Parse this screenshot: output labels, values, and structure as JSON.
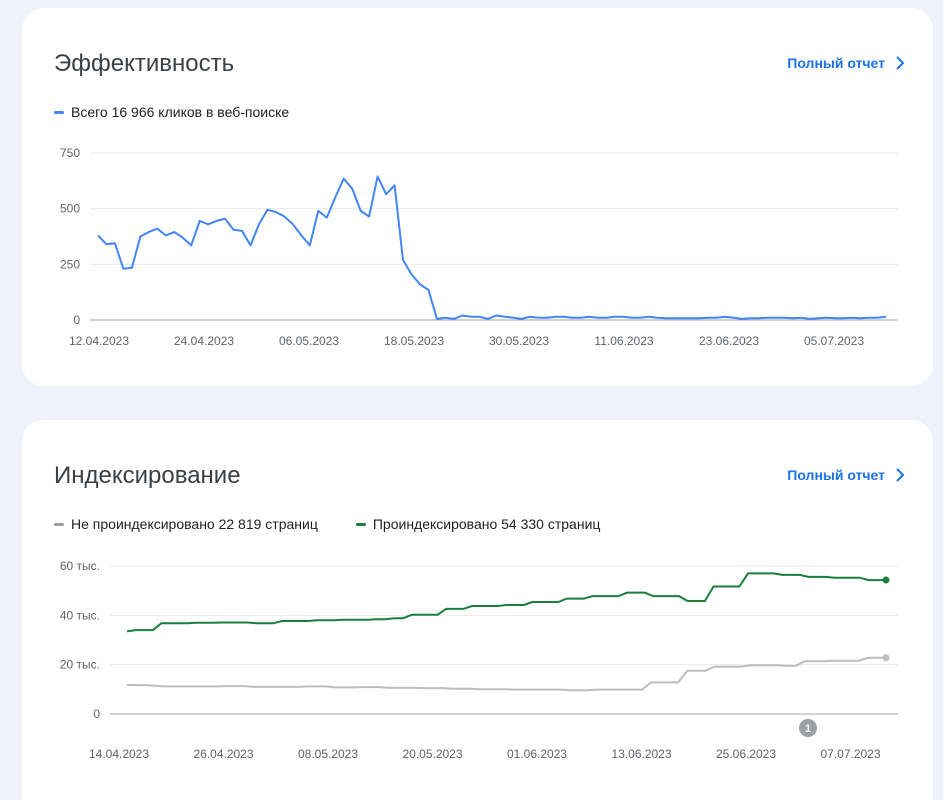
{
  "performance": {
    "title": "Эффективность",
    "full_report": "Полный отчет",
    "legend": {
      "label": "Всего 16 966 кликов в веб-поиске",
      "color": "#4285f4"
    },
    "chart_data": {
      "type": "line",
      "x_ticks": [
        "12.04.2023",
        "24.04.2023",
        "06.05.2023",
        "18.05.2023",
        "30.05.2023",
        "11.06.2023",
        "23.06.2023",
        "05.07.2023"
      ],
      "y_ticks": [
        "0",
        "250",
        "500",
        "750"
      ],
      "ylim": [
        0,
        750
      ],
      "series": [
        {
          "color": "#4285f4",
          "values": [
            380,
            340,
            345,
            230,
            235,
            375,
            395,
            410,
            380,
            395,
            370,
            335,
            445,
            430,
            445,
            455,
            405,
            400,
            335,
            430,
            495,
            485,
            465,
            430,
            380,
            335,
            490,
            460,
            550,
            635,
            590,
            490,
            465,
            645,
            565,
            605,
            270,
            205,
            160,
            135,
            5,
            10,
            5,
            20,
            15,
            15,
            5,
            20,
            15,
            10,
            5,
            15,
            10,
            10,
            15,
            15,
            10,
            10,
            15,
            10,
            10,
            15,
            15,
            10,
            10,
            15,
            10,
            8,
            8,
            8,
            8,
            8,
            10,
            10,
            15,
            10,
            5,
            8,
            8,
            10,
            10,
            10,
            8,
            10,
            5,
            8,
            10,
            8,
            8,
            10,
            8,
            10,
            10,
            15
          ]
        }
      ]
    }
  },
  "indexing": {
    "title": "Индексирование",
    "full_report": "Полный отчет",
    "legend": [
      {
        "label": "Не проиндексировано 22 819 страниц",
        "color": "#9e9e9e"
      },
      {
        "label": "Проиндексировано 54 330 страниц",
        "color": "#188038"
      }
    ],
    "annotation_badge": "1",
    "chart_data": {
      "type": "line",
      "x_ticks": [
        "14.04.2023",
        "26.04.2023",
        "08.05.2023",
        "20.05.2023",
        "01.06.2023",
        "13.06.2023",
        "25.06.2023",
        "07.07.2023"
      ],
      "y_ticks": [
        "0",
        "20 тыс.",
        "40 тыс.",
        "60 тыс."
      ],
      "ylim": [
        0,
        60000
      ],
      "series": [
        {
          "color": "#188038",
          "values": [
            33500,
            34000,
            34000,
            34000,
            36800,
            36800,
            36800,
            36800,
            37000,
            37000,
            37000,
            37100,
            37100,
            37100,
            37100,
            36800,
            36800,
            36800,
            37700,
            37700,
            37700,
            37700,
            38000,
            38000,
            38000,
            38200,
            38200,
            38200,
            38200,
            38400,
            38400,
            38800,
            38800,
            40200,
            40200,
            40200,
            40200,
            42600,
            42600,
            42600,
            43800,
            43800,
            43800,
            43800,
            44200,
            44200,
            44200,
            45400,
            45400,
            45400,
            45400,
            46800,
            46800,
            46800,
            47800,
            47800,
            47800,
            47800,
            49200,
            49200,
            49200,
            47800,
            47800,
            47800,
            47800,
            45800,
            45800,
            45800,
            51700,
            51700,
            51700,
            51700,
            57000,
            57000,
            57000,
            57000,
            56400,
            56400,
            56400,
            55600,
            55600,
            55600,
            55200,
            55200,
            55200,
            55200,
            54300,
            54300,
            54300
          ]
        },
        {
          "color": "#bdbdbd",
          "values": [
            11800,
            11700,
            11700,
            11500,
            11200,
            11200,
            11200,
            11200,
            11200,
            11200,
            11200,
            11300,
            11300,
            11300,
            11000,
            11000,
            11000,
            11000,
            11000,
            11000,
            11200,
            11200,
            11200,
            10800,
            10800,
            10800,
            10900,
            10900,
            10900,
            10600,
            10600,
            10600,
            10600,
            10500,
            10500,
            10500,
            10200,
            10200,
            10200,
            10000,
            10000,
            10000,
            10000,
            9900,
            9900,
            9900,
            9900,
            9900,
            9900,
            9600,
            9600,
            9600,
            9900,
            9900,
            9900,
            9900,
            9900,
            9900,
            12800,
            12800,
            12800,
            12800,
            17500,
            17500,
            17500,
            19200,
            19200,
            19200,
            19200,
            19800,
            19800,
            19800,
            19800,
            19500,
            19500,
            21400,
            21400,
            21400,
            21600,
            21600,
            21600,
            21600,
            22800,
            22800,
            22800
          ]
        }
      ]
    }
  }
}
